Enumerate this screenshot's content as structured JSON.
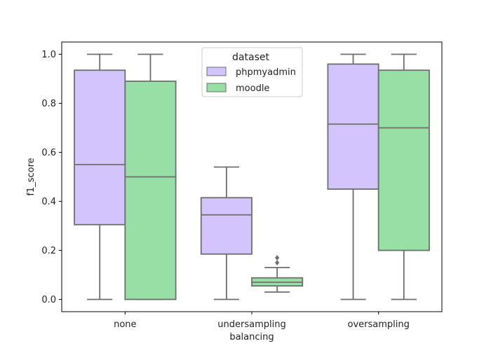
{
  "chart_data": {
    "type": "box",
    "title": "",
    "xlabel": "balancing",
    "ylabel": "f1_score",
    "ylim": [
      -0.05,
      1.05
    ],
    "yticks": [
      0.0,
      0.2,
      0.4,
      0.6,
      0.8,
      1.0
    ],
    "ytick_labels": [
      "0.0",
      "0.2",
      "0.4",
      "0.6",
      "0.8",
      "1.0"
    ],
    "categories": [
      "none",
      "undersampling",
      "oversampling"
    ],
    "grid": false,
    "legend": {
      "title": "dataset",
      "position": "top-center"
    },
    "series": [
      {
        "name": "phpmyadmin",
        "color": "#d3c4fd",
        "boxes": [
          {
            "min": 0.0,
            "q1": 0.305,
            "median": 0.55,
            "q3": 0.935,
            "max": 1.0,
            "outliers": []
          },
          {
            "min": 0.0,
            "q1": 0.185,
            "median": 0.345,
            "q3": 0.415,
            "max": 0.54,
            "outliers": []
          },
          {
            "min": 0.0,
            "q1": 0.45,
            "median": 0.715,
            "q3": 0.96,
            "max": 1.0,
            "outliers": []
          }
        ]
      },
      {
        "name": "moodle",
        "color": "#98dfa6",
        "boxes": [
          {
            "min": 0.0,
            "q1": 0.0,
            "median": 0.5,
            "q3": 0.89,
            "max": 1.0,
            "outliers": []
          },
          {
            "min": 0.03,
            "q1": 0.055,
            "median": 0.07,
            "q3": 0.088,
            "max": 0.13,
            "outliers": [
              0.15,
              0.17
            ]
          },
          {
            "min": 0.0,
            "q1": 0.2,
            "median": 0.7,
            "q3": 0.935,
            "max": 1.0,
            "outliers": []
          }
        ]
      }
    ]
  }
}
